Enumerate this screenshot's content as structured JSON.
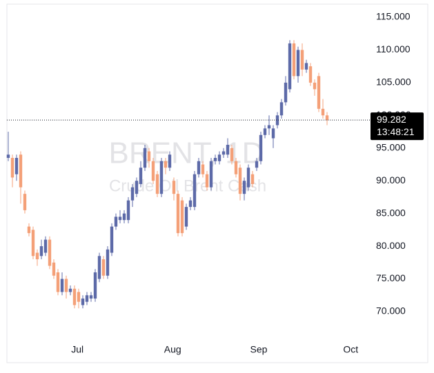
{
  "chart_data": {
    "type": "candlestick",
    "title": "BRENT, 1D",
    "subtitle": "Crude Oil Brent Cash",
    "x": [
      0,
      1,
      2,
      3,
      4,
      5,
      6,
      7,
      8,
      9,
      10,
      11,
      12,
      13,
      14,
      15,
      16,
      17,
      18,
      19,
      20,
      21,
      22,
      23,
      24,
      25,
      26,
      27,
      28,
      29,
      30,
      31,
      32,
      33,
      34,
      35,
      36,
      37,
      38,
      39,
      40,
      41,
      42,
      43,
      44,
      45,
      46,
      47,
      48,
      49,
      50,
      51,
      52,
      53,
      54,
      55,
      56,
      57,
      58,
      59,
      60,
      61,
      62,
      63,
      64,
      65,
      66,
      67,
      68,
      69,
      70,
      71,
      72,
      73,
      74,
      75,
      76,
      77
    ],
    "open": [
      93.5,
      93.5,
      91,
      94,
      88,
      83,
      82.5,
      79,
      78.5,
      79,
      81,
      77.5,
      76,
      73,
      75,
      73,
      73.5,
      73,
      71,
      71.5,
      72,
      72,
      75,
      78,
      75.5,
      79,
      83,
      84,
      84,
      84,
      87,
      88,
      89.5,
      92,
      94.5,
      93,
      91,
      88,
      93,
      92,
      90,
      88,
      87,
      83,
      86,
      86,
      91,
      92.5,
      91,
      89,
      93,
      93,
      94,
      94,
      95,
      93,
      92,
      88,
      89,
      91,
      92,
      93,
      97,
      98,
      96.5,
      98.5,
      100,
      102,
      104,
      111,
      106,
      110,
      107,
      107.5,
      105,
      106,
      101,
      100
    ],
    "high": [
      97.5,
      94,
      94,
      94.5,
      88.5,
      83.5,
      83,
      79.5,
      81,
      81.5,
      81.5,
      78,
      76.5,
      76,
      75.5,
      74,
      74,
      73.5,
      72.5,
      73,
      73,
      76.5,
      79,
      78.5,
      80,
      83.5,
      85,
      85.5,
      85.5,
      87.5,
      89.5,
      90.5,
      93,
      95.5,
      95,
      93.5,
      91.5,
      93.5,
      93.5,
      94.5,
      90.5,
      88.5,
      87.5,
      86.5,
      87.5,
      91.5,
      93.5,
      93,
      91.5,
      93.5,
      94,
      94.5,
      95,
      96.5,
      95.5,
      93.5,
      92.5,
      90.5,
      92.5,
      91.5,
      93.5,
      97.5,
      98.5,
      100,
      98.5,
      100.5,
      102.5,
      106,
      111.5,
      111.5,
      110.5,
      111,
      108.5,
      108,
      105.5,
      106.5,
      102.5,
      100.5
    ],
    "low": [
      93,
      89,
      90,
      86.5,
      85,
      81.5,
      78,
      77,
      78,
      78.5,
      76.5,
      75,
      72.5,
      72.5,
      72,
      72.5,
      70.5,
      70.5,
      70.5,
      71,
      71.5,
      71.5,
      74.5,
      75,
      75,
      78.5,
      82.5,
      83.5,
      83.5,
      83.5,
      86,
      87.5,
      89,
      91.5,
      92,
      89.5,
      87.5,
      87.5,
      91,
      91.5,
      87,
      81.5,
      81.5,
      82.5,
      85.5,
      85.5,
      90.5,
      90.5,
      88.5,
      88.5,
      92.5,
      92.5,
      93.5,
      93.5,
      92.5,
      90.5,
      87,
      87,
      88.5,
      89,
      91.5,
      92.5,
      96.5,
      97,
      95,
      98,
      99.5,
      101.5,
      103.5,
      105.5,
      105,
      106,
      106.5,
      104.5,
      103,
      100.5,
      99.5,
      98.5
    ],
    "close": [
      94,
      90.5,
      93.5,
      89,
      85.5,
      82,
      78.5,
      78,
      80,
      81,
      77,
      75.5,
      73,
      75,
      73,
      73.5,
      71,
      71.5,
      72,
      72.5,
      72.5,
      76,
      78.5,
      75.5,
      79.5,
      83,
      84.5,
      84.5,
      85,
      87,
      89,
      90,
      92,
      95,
      93,
      90,
      88,
      93,
      92,
      94,
      88,
      82,
      82,
      86,
      87,
      91,
      93,
      91,
      89,
      93,
      93.5,
      94,
      94.5,
      95.5,
      93,
      91,
      88,
      90,
      92,
      89.5,
      93,
      97,
      98,
      98.5,
      98,
      100,
      102,
      105,
      111,
      106,
      110,
      107,
      108,
      105,
      104,
      101,
      100,
      99.282
    ],
    "up_color": "#5d6aa8",
    "down_color": "#f4a078",
    "xlim": [
      -0.33,
      86.33
    ],
    "xticks": [
      {
        "value": 16.7,
        "label": "Jul"
      },
      {
        "value": 39.7,
        "label": "Aug"
      },
      {
        "value": 60.5,
        "label": "Sep"
      },
      {
        "value": 82.7,
        "label": "Oct"
      }
    ],
    "ylim": [
      62.83,
      116.58
    ],
    "yticks": [
      {
        "value": 70,
        "label": "70.000"
      },
      {
        "value": 75,
        "label": "75.000"
      },
      {
        "value": 80,
        "label": "80.000"
      },
      {
        "value": 85,
        "label": "85.000"
      },
      {
        "value": 90,
        "label": "90.000"
      },
      {
        "value": 95,
        "label": "95.000"
      },
      {
        "value": 100,
        "label": "100.000"
      },
      {
        "value": 105,
        "label": "105.000"
      },
      {
        "value": 110,
        "label": "110.000"
      },
      {
        "value": 115,
        "label": "115.000"
      }
    ],
    "price_line": {
      "value": 99.282,
      "countdown": "13:48:21"
    }
  }
}
